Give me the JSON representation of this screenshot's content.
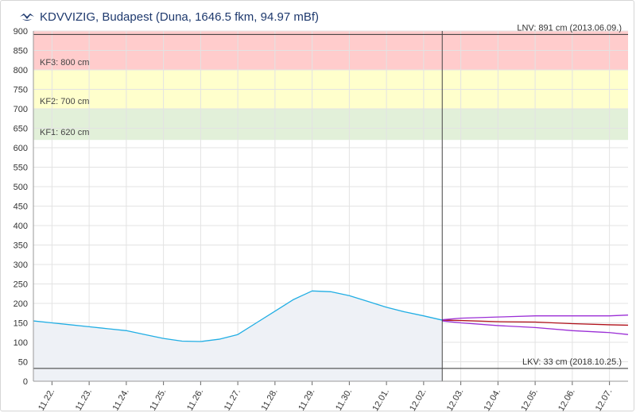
{
  "header": {
    "title": "KDVVIZIG, Budapest (Duna, 1646.5 fkm, 94.97 mBf)",
    "logo_icon": "kdvvizig-logo-icon"
  },
  "colors": {
    "kf3_band": "#ffcccc",
    "kf2_band": "#ffffcc",
    "kf1_band": "#e2f0d9",
    "measured_line": "#21aee4",
    "measured_fill": "#eef1f6",
    "forecast_mid": "#b0101a",
    "forecast_bounds": "#9b2fd6",
    "ref_line": "#333333",
    "grid": "#e3e3e3",
    "axis_text": "#333333",
    "title": "#1f3a6e"
  },
  "chart_data": {
    "type": "line",
    "xlabel": "",
    "ylabel": "",
    "ylim": [
      0,
      900
    ],
    "yticks": [
      0,
      50,
      100,
      150,
      200,
      250,
      300,
      350,
      400,
      450,
      500,
      550,
      600,
      650,
      700,
      750,
      800,
      850,
      900
    ],
    "xrange": [
      "2018-11-21 12:00",
      "2018-12-07 12:00"
    ],
    "xtick_labels": [
      "11.22.",
      "11.23.",
      "11.24.",
      "11.25.",
      "11.26.",
      "11.27.",
      "11.28.",
      "11.29.",
      "11.30.",
      "12.01.",
      "12.02.",
      "12.03.",
      "12.04.",
      "12.05.",
      "12.06.",
      "12.07."
    ],
    "grid": true,
    "now_marker": "2018-12-02 12:00",
    "bands": [
      {
        "label": "KF3: 800 cm",
        "from": 800,
        "to": 900,
        "level": "kf3"
      },
      {
        "label": "KF2: 700 cm",
        "from": 700,
        "to": 800,
        "level": "kf2"
      },
      {
        "label": "KF1: 620 cm",
        "from": 620,
        "to": 700,
        "level": "kf1"
      }
    ],
    "reference_lines": [
      {
        "label": "LNV: 891 cm (2013.06.09.)",
        "value": 891
      },
      {
        "label": "LKV: 33 cm (2018.10.25.)",
        "value": 33
      }
    ],
    "series": [
      {
        "role": "measured",
        "x": [
          "2018-11-21 12:00",
          "2018-11-22 00:00",
          "2018-11-22 12:00",
          "2018-11-23 00:00",
          "2018-11-23 12:00",
          "2018-11-24 00:00",
          "2018-11-24 12:00",
          "2018-11-25 00:00",
          "2018-11-25 12:00",
          "2018-11-26 00:00",
          "2018-11-26 12:00",
          "2018-11-27 00:00",
          "2018-11-27 12:00",
          "2018-11-28 00:00",
          "2018-11-28 12:00",
          "2018-11-29 00:00",
          "2018-11-29 12:00",
          "2018-11-30 00:00",
          "2018-11-30 12:00",
          "2018-12-01 00:00",
          "2018-12-01 12:00",
          "2018-12-02 00:00",
          "2018-12-02 12:00"
        ],
        "values": [
          155,
          150,
          145,
          140,
          135,
          130,
          120,
          110,
          103,
          102,
          108,
          120,
          150,
          180,
          210,
          232,
          230,
          220,
          205,
          190,
          178,
          168,
          157
        ]
      },
      {
        "role": "forecast",
        "x": [
          "2018-12-02 12:00",
          "2018-12-03 00:00",
          "2018-12-04 00:00",
          "2018-12-05 00:00",
          "2018-12-06 00:00",
          "2018-12-07 00:00",
          "2018-12-07 12:00"
        ],
        "values": [
          157,
          156,
          153,
          152,
          148,
          145,
          144
        ]
      },
      {
        "role": "forecast_upper",
        "x": [
          "2018-12-02 12:00",
          "2018-12-03 00:00",
          "2018-12-04 00:00",
          "2018-12-05 00:00",
          "2018-12-06 00:00",
          "2018-12-07 00:00",
          "2018-12-07 12:00"
        ],
        "values": [
          158,
          162,
          165,
          168,
          168,
          168,
          170
        ]
      },
      {
        "role": "forecast_lower",
        "x": [
          "2018-12-02 12:00",
          "2018-12-03 00:00",
          "2018-12-04 00:00",
          "2018-12-05 00:00",
          "2018-12-06 00:00",
          "2018-12-07 00:00",
          "2018-12-07 12:00"
        ],
        "values": [
          155,
          150,
          143,
          138,
          130,
          125,
          120
        ]
      }
    ]
  }
}
